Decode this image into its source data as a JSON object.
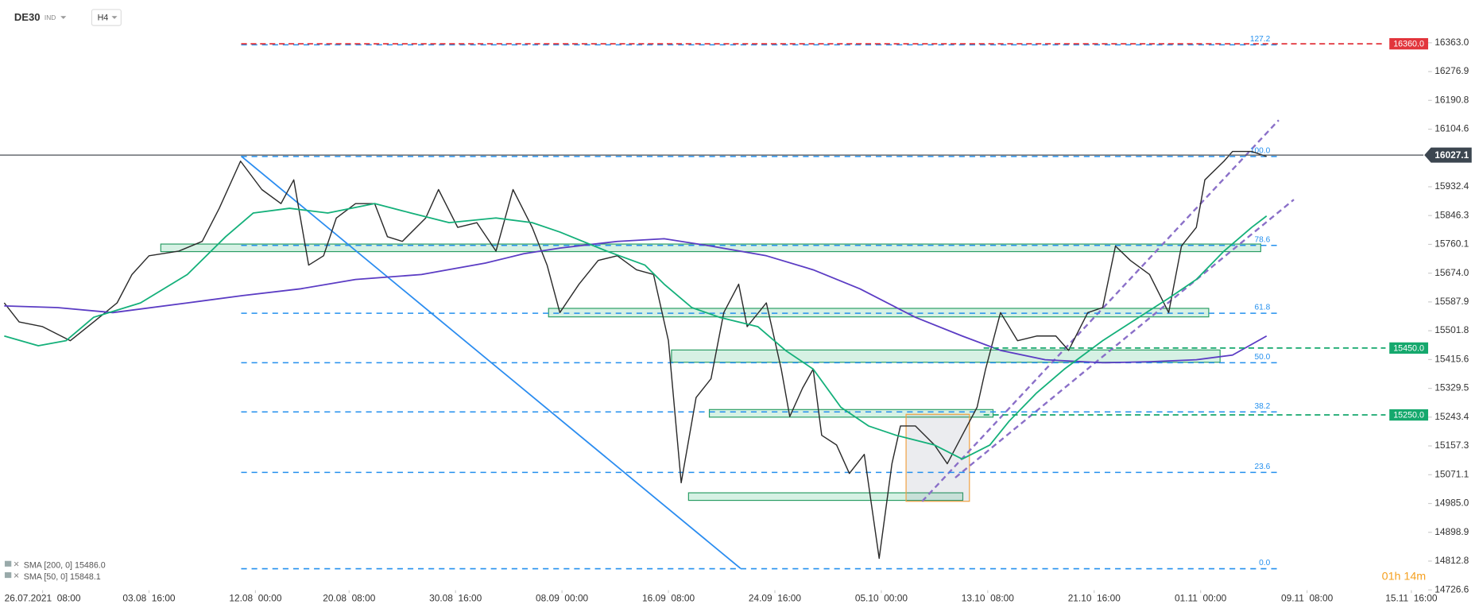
{
  "header": {
    "symbol": "DE30",
    "market": "IND",
    "interval": "H4"
  },
  "timer": "01h 14m",
  "chart_data": {
    "type": "line",
    "grid": false,
    "xlim": [
      -20,
      650
    ],
    "ylim": [
      14720,
      16440
    ],
    "xticks": [
      {
        "value": 0,
        "label": "26.07.2021  08:00"
      },
      {
        "value": 50,
        "label": "03.08  16:00"
      },
      {
        "value": 100,
        "label": "12.08  00:00"
      },
      {
        "value": 144,
        "label": "20.08  08:00"
      },
      {
        "value": 194,
        "label": "30.08  16:00"
      },
      {
        "value": 244,
        "label": "08.09  00:00"
      },
      {
        "value": 294,
        "label": "16.09  08:00"
      },
      {
        "value": 344,
        "label": "24.09  16:00"
      },
      {
        "value": 394,
        "label": "05.10  00:00"
      },
      {
        "value": 444,
        "label": "13.10  08:00"
      },
      {
        "value": 494,
        "label": "21.10  16:00"
      },
      {
        "value": 544,
        "label": "01.11  00:00"
      },
      {
        "value": 594,
        "label": "09.11  08:00"
      },
      {
        "value": 643,
        "label": "15.11  16:00"
      }
    ],
    "yticks": [
      {
        "value": 16363,
        "label": "16363.0"
      },
      16276.9,
      16190.8,
      16104.6,
      15932.4,
      15846.3,
      15760.1,
      {
        "value": 15674,
        "label": "15674.0"
      },
      15587.9,
      15501.8,
      15415.6,
      15329.5,
      15243.4,
      15157.3,
      15071.1,
      {
        "value": 14985,
        "label": "14985.0"
      },
      14898.9,
      14812.8,
      14726.6
    ],
    "series": [
      {
        "color": "#2b2b2b",
        "x": [
          -18,
          -11,
          0,
          13,
          24,
          35,
          42,
          50,
          64,
          75,
          83,
          93,
          103,
          112,
          118,
          125,
          132,
          138,
          147,
          156,
          162,
          169,
          180,
          186,
          195,
          204,
          213,
          221,
          230,
          237,
          243,
          252,
          261,
          270,
          279,
          287,
          294,
          300,
          307,
          314,
          320,
          327,
          331,
          340,
          347,
          351,
          357,
          362,
          366,
          373,
          379,
          386,
          393,
          399,
          403,
          410,
          419,
          425,
          432,
          439,
          443,
          450,
          458,
          467,
          476,
          482,
          491,
          498,
          504,
          511,
          520,
          529,
          535,
          542,
          546,
          555,
          559,
          568,
          575
        ],
        "values": [
          15585,
          15528,
          15514,
          15472,
          15528,
          15585,
          15670,
          15726,
          15740,
          15769,
          15868,
          16009,
          15924,
          15882,
          15953,
          15698,
          15726,
          15839,
          15882,
          15882,
          15783,
          15769,
          15839,
          15924,
          15811,
          15825,
          15740,
          15924,
          15811,
          15698,
          15556,
          15641,
          15712,
          15726,
          15684,
          15670,
          15472,
          15047,
          15302,
          15358,
          15556,
          15641,
          15514,
          15585,
          15387,
          15245,
          15330,
          15387,
          15189,
          15160,
          15075,
          15132,
          14821,
          15104,
          15217,
          15217,
          15160,
          15104,
          15189,
          15273,
          15387,
          15556,
          15472,
          15486,
          15486,
          15443,
          15556,
          15571,
          15755,
          15712,
          15670,
          15556,
          15755,
          15811,
          15953,
          16009,
          16038,
          16038,
          16023
        ]
      },
      {
        "name": "SMA [200, 0] 15486.0",
        "color": "#5b3cc4",
        "x": [
          -18,
          7,
          33,
          68,
          94,
          121,
          147,
          178,
          208,
          226,
          243,
          270,
          292,
          314,
          340,
          362,
          384,
          410,
          432,
          450,
          471,
          498,
          520,
          542,
          559,
          575
        ],
        "values": [
          15576,
          15571,
          15556,
          15585,
          15607,
          15627,
          15655,
          15670,
          15704,
          15732,
          15749,
          15769,
          15777,
          15755,
          15726,
          15684,
          15627,
          15542,
          15486,
          15443,
          15415,
          15406,
          15409,
          15415,
          15429,
          15486
        ]
      },
      {
        "name": "SMA [50, 0] 15848.1",
        "color": "#14b07a",
        "x": [
          -18,
          -2,
          11,
          24,
          46,
          68,
          86,
          99,
          116,
          134,
          156,
          173,
          191,
          213,
          230,
          243,
          265,
          283,
          292,
          305,
          318,
          336,
          349,
          362,
          375,
          388,
          401,
          419,
          432,
          445,
          454,
          467,
          480,
          498,
          515,
          529,
          542,
          555,
          568,
          575
        ],
        "values": [
          15486,
          15457,
          15472,
          15542,
          15585,
          15670,
          15783,
          15854,
          15868,
          15854,
          15882,
          15854,
          15825,
          15839,
          15825,
          15797,
          15740,
          15698,
          15641,
          15571,
          15542,
          15514,
          15443,
          15387,
          15273,
          15217,
          15189,
          15160,
          15118,
          15160,
          15231,
          15316,
          15387,
          15472,
          15542,
          15599,
          15655,
          15740,
          15811,
          15845
        ]
      }
    ],
    "levels": [
      {
        "value": 16360,
        "label": "16360.0",
        "color": "#e2353c"
      },
      {
        "value": 15450,
        "label": "15450.0",
        "color": "#15a86d"
      },
      {
        "value": 15250,
        "label": "15250.0",
        "color": "#15a86d"
      }
    ],
    "current_price": 16027.1,
    "fib_levels": [
      {
        "value": 16357,
        "label": "127.2"
      },
      {
        "value": 16023,
        "label": "100.0"
      },
      {
        "value": 15757,
        "label": "78.6"
      },
      {
        "value": 15554,
        "label": "61.8"
      },
      {
        "value": 15406,
        "label": "50.0"
      },
      {
        "value": 15259,
        "label": "38.2"
      },
      {
        "value": 15078,
        "label": "23.6"
      },
      {
        "value": 14790,
        "label": "0.0"
      }
    ],
    "fib_color": "#2490ee"
  }
}
